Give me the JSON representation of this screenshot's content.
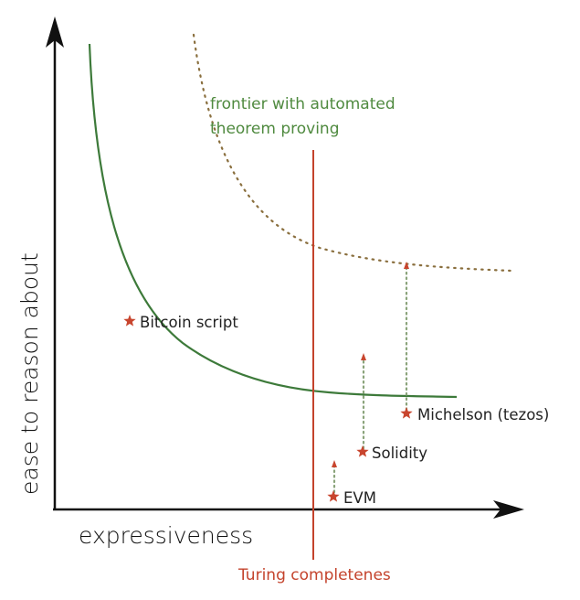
{
  "axes": {
    "x_label": "expressiveness",
    "y_label": "ease to reason about"
  },
  "frontier_label": {
    "line1": "frontier with automated",
    "line2": "theorem proving"
  },
  "turing_label": "Turing completenes",
  "points": [
    {
      "name": "Bitcoin script"
    },
    {
      "name": "Michelson (tezos)"
    },
    {
      "name": "Solidity"
    },
    {
      "name": "EVM"
    }
  ],
  "colors": {
    "frontier": "#3d7a3a",
    "automated_frontier": "#8a6f3e",
    "turing_line": "#c4432c",
    "star": "#c8452e",
    "arrow": "#8aa37a",
    "axis": "#111111"
  }
}
